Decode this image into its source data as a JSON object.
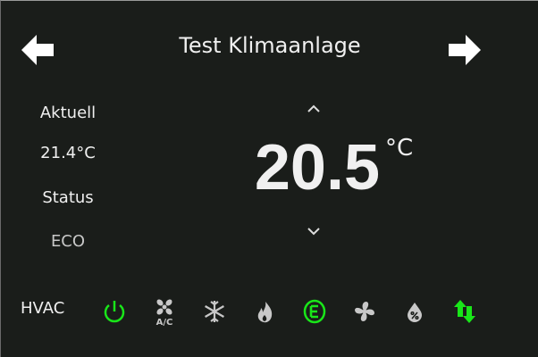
{
  "header": {
    "title": "Test Klimaanlage",
    "prev_icon": "arrow-left-icon",
    "next_icon": "arrow-right-icon"
  },
  "left": {
    "current_label": "Aktuell",
    "current_value": "21.4°C",
    "status_label": "Status",
    "status_value": "ECO"
  },
  "setpoint": {
    "value": "20.5",
    "unit": "°C",
    "up_icon": "chevron-up-icon",
    "down_icon": "chevron-down-icon"
  },
  "hvac": {
    "label": "HVAC",
    "ac_text": "A/C",
    "modes": [
      {
        "icon": "power-icon",
        "active": true
      },
      {
        "icon": "ac-fan-icon",
        "active": false
      },
      {
        "icon": "snowflake-icon",
        "active": false
      },
      {
        "icon": "flame-icon",
        "active": false
      },
      {
        "icon": "eco-icon",
        "active": true
      },
      {
        "icon": "fan-icon",
        "active": false
      },
      {
        "icon": "dry-drop-icon",
        "active": false
      },
      {
        "icon": "auto-arrows-icon",
        "active": true
      }
    ]
  },
  "colors": {
    "background": "#1a1d1a",
    "active": "#19e619",
    "inactive": "#c8c8c8",
    "text": "#f0f0f0",
    "status_text": "#c8c8c8"
  }
}
